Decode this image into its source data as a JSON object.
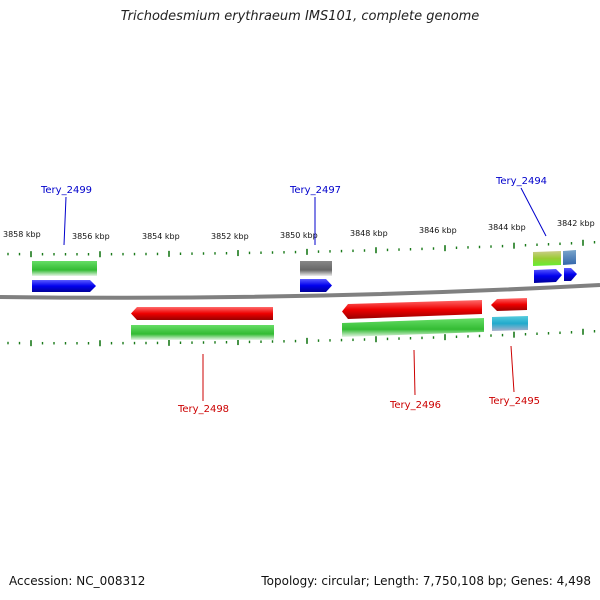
{
  "title": "Trichodesmium erythraeum IMS101, complete genome",
  "footer": {
    "accession": "Accession: NC_008312",
    "info": "Topology: circular; Length: 7,750,108 bp; Genes: 4,498"
  },
  "scale_labels": [
    "3858 kbp",
    "3856 kbp",
    "3854 kbp",
    "3852 kbp",
    "3850 kbp",
    "3848 kbp",
    "3846 kbp",
    "3844 kbp",
    "3842 kbp"
  ],
  "genes": [
    {
      "id": "Tery_2499",
      "strand": "forward",
      "color": "#0000cc"
    },
    {
      "id": "Tery_2498",
      "strand": "reverse",
      "color": "#cc0000"
    },
    {
      "id": "Tery_2497",
      "strand": "forward",
      "color": "#0000cc"
    },
    {
      "id": "Tery_2496",
      "strand": "reverse",
      "color": "#cc0000"
    },
    {
      "id": "Tery_2495",
      "strand": "reverse",
      "color": "#cc0000"
    },
    {
      "id": "Tery_2494",
      "strand": "forward",
      "color": "#0000cc"
    }
  ],
  "colors": {
    "forward_gene": "#0000ee",
    "reverse_gene": "#ee0000",
    "cog_green": "#33bb33",
    "cog_gray": "#666666",
    "cog_cyan": "#22aacc",
    "backbone": "#777777",
    "tick": "#1a7a1a"
  }
}
